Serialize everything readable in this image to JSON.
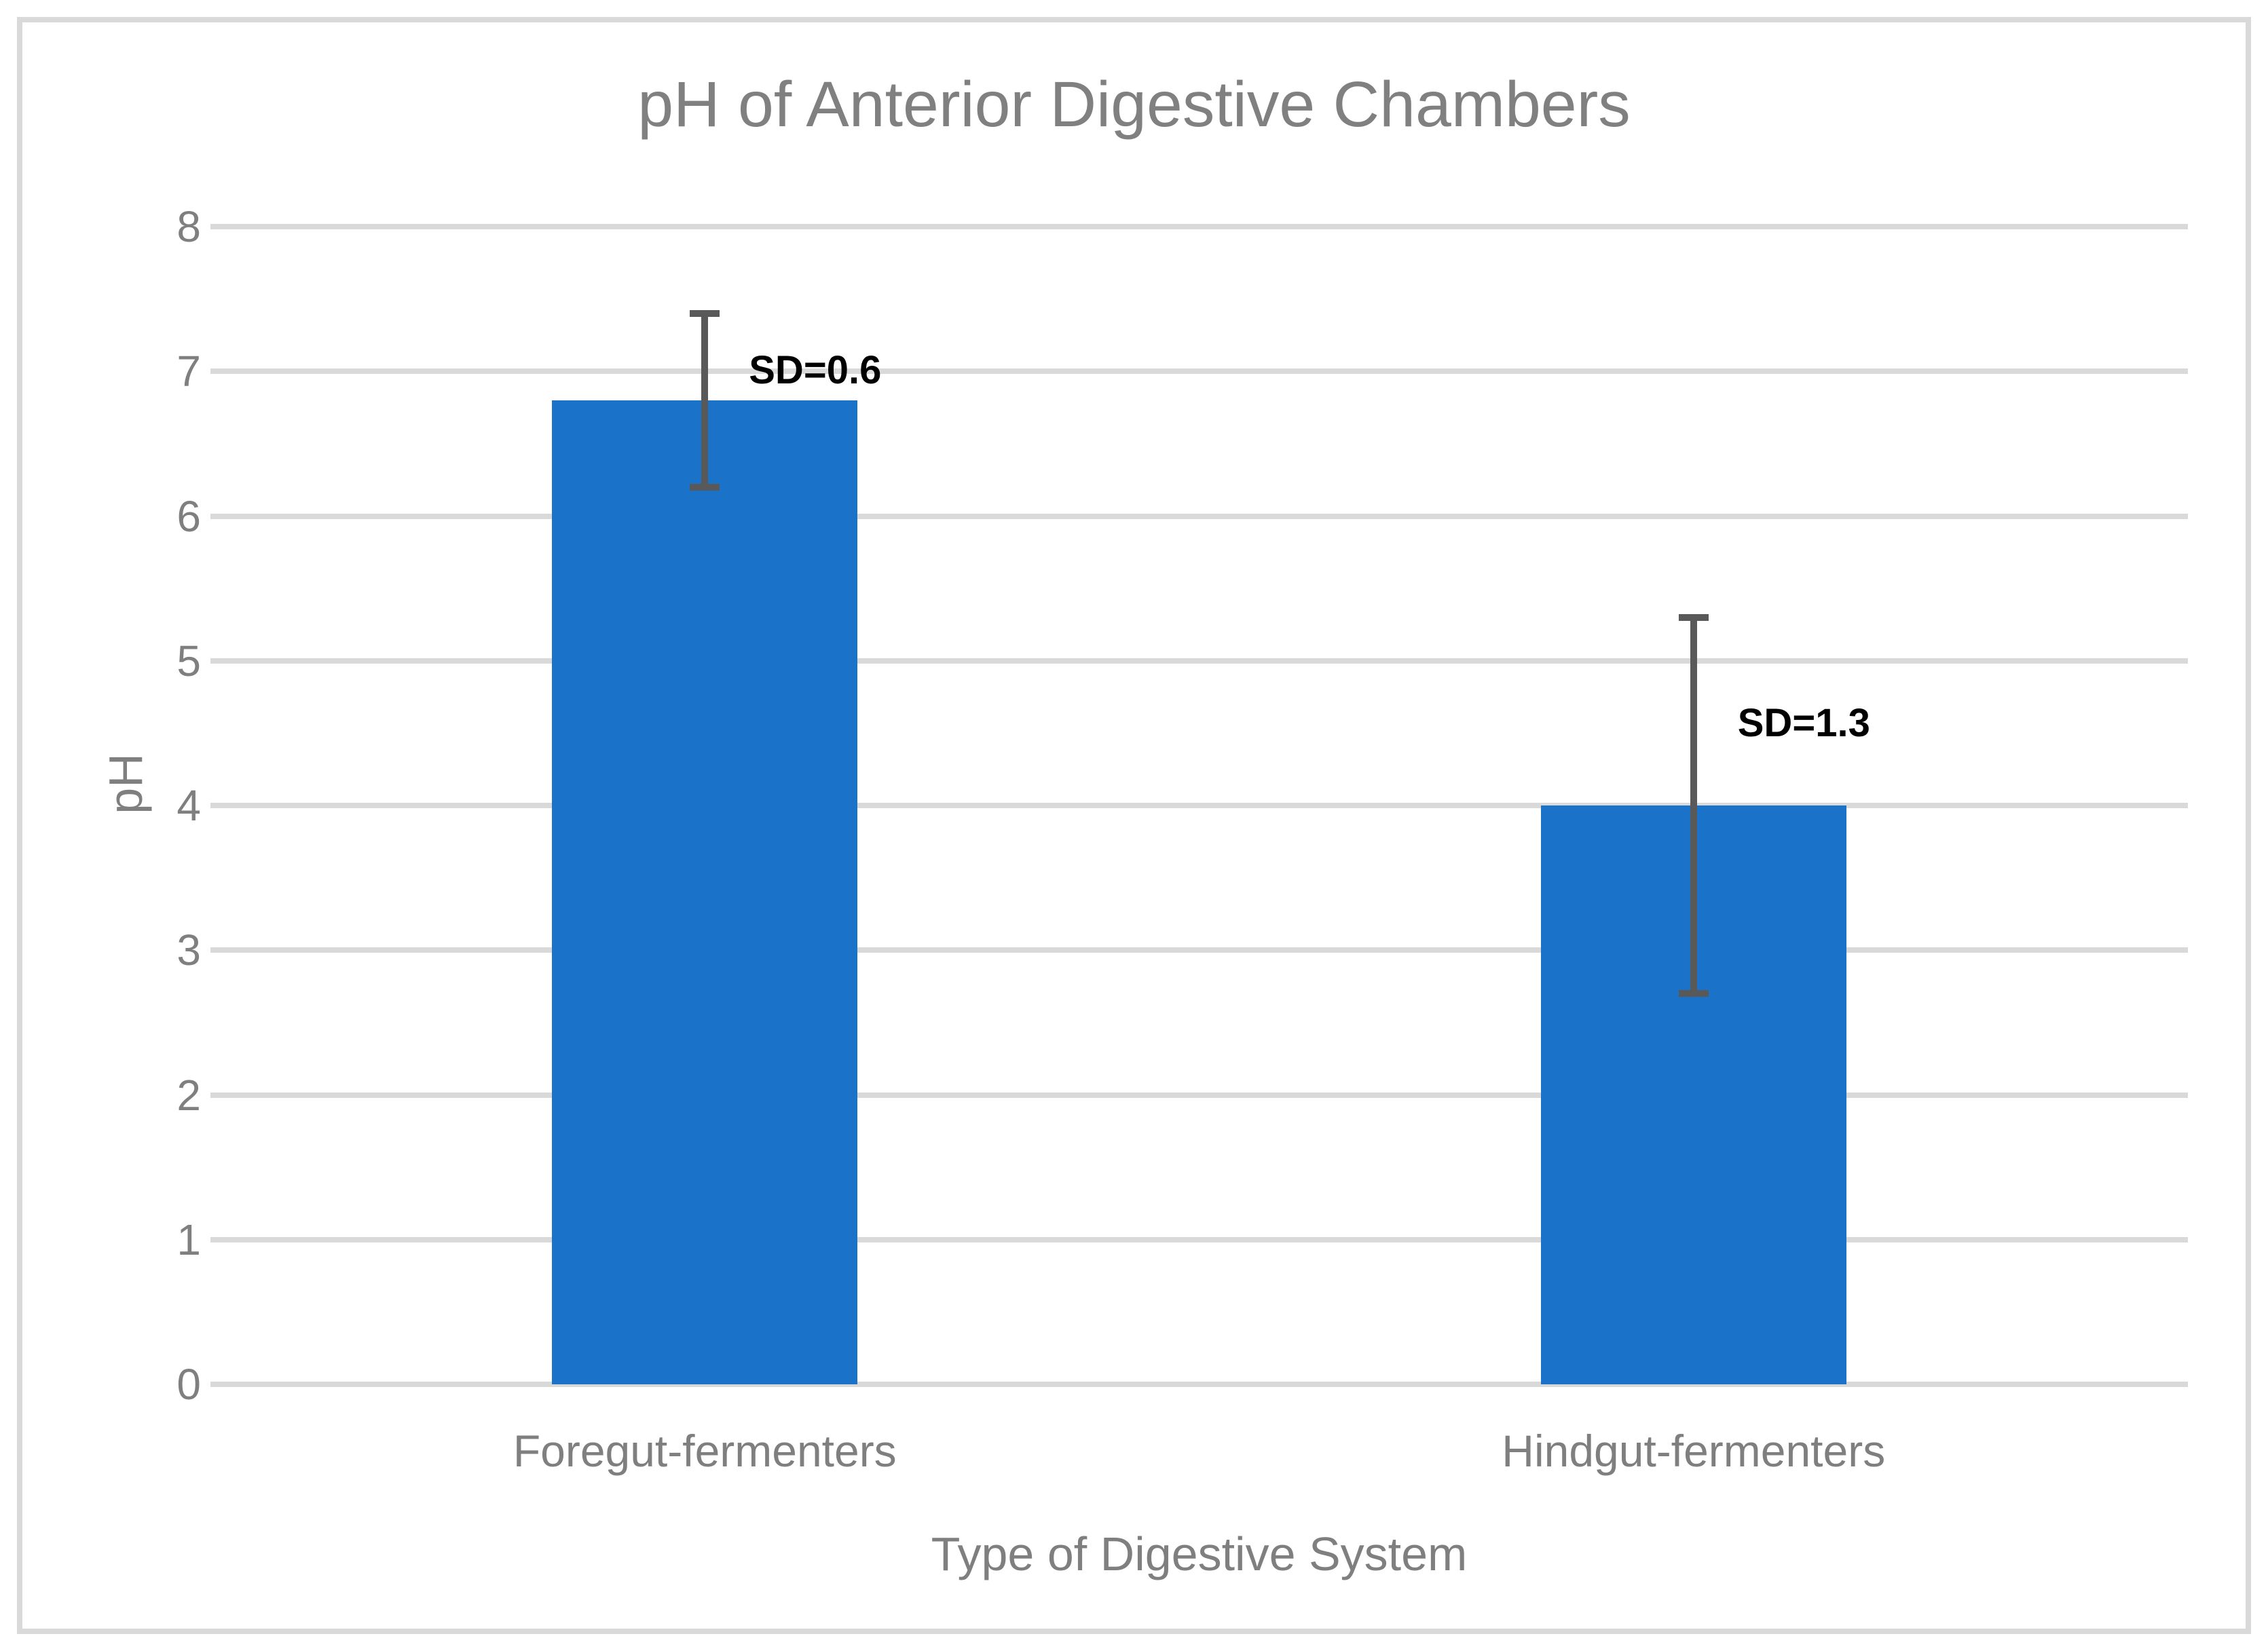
{
  "window": {
    "background": "#FFFFFF",
    "frame_border_color": "#D9D9D9"
  },
  "chart_data": {
    "type": "bar",
    "title": "pH of Anterior Digestive Chambers",
    "xlabel": "Type of Digestive System",
    "ylabel": "pH",
    "categories": [
      "Foregut-fermenters",
      "Hindgut-fermenters"
    ],
    "values": [
      6.8,
      4.0
    ],
    "error_sd": [
      0.6,
      1.3
    ],
    "error_labels": [
      "SD=0.6",
      "SD=1.3"
    ],
    "ylim": [
      0,
      8
    ],
    "yticks": [
      0,
      1,
      2,
      3,
      4,
      5,
      6,
      7,
      8
    ],
    "grid": true,
    "legend_position": "none",
    "colors": {
      "bar": "#1A73C8",
      "gridline": "#D9D9D9",
      "error_bar": "#595959",
      "axis_text": "#7F7F7F",
      "title_text": "#808080",
      "annotation_text": "#000000"
    }
  }
}
